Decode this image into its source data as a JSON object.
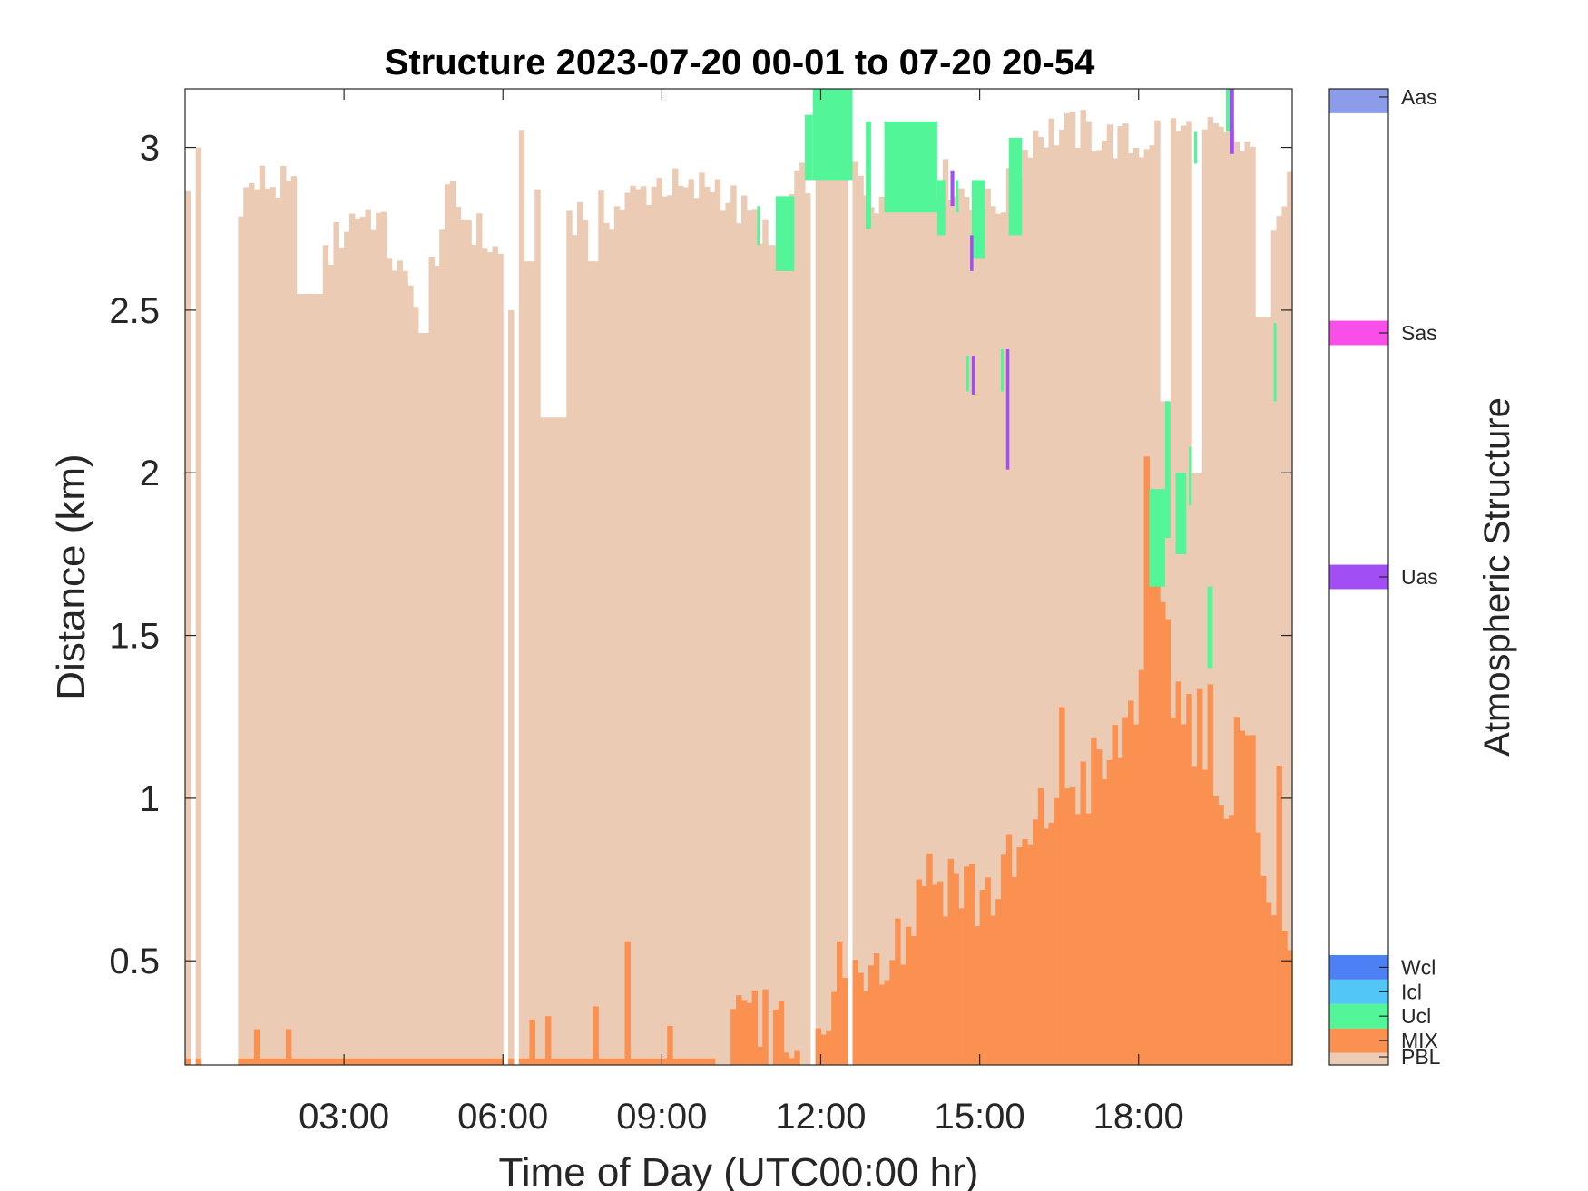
{
  "chart_data": {
    "type": "heatmap",
    "title": "Structure 2023-07-20 00-01 to 07-20 20-54",
    "xlabel": "Time of Day (UTC00:00 hr)",
    "ylabel": "Distance (km)",
    "colorbar_label": "Atmospheric Structure",
    "xlim": [
      0,
      20.9
    ],
    "ylim": [
      0.18,
      3.18
    ],
    "x_ticks": [
      {
        "value": 3,
        "label": "03:00"
      },
      {
        "value": 6,
        "label": "06:00"
      },
      {
        "value": 9,
        "label": "09:00"
      },
      {
        "value": 12,
        "label": "12:00"
      },
      {
        "value": 15,
        "label": "15:00"
      },
      {
        "value": 18,
        "label": "18:00"
      }
    ],
    "y_ticks": [
      {
        "value": 0.5,
        "label": "0.5"
      },
      {
        "value": 1,
        "label": "1"
      },
      {
        "value": 1.5,
        "label": "1.5"
      },
      {
        "value": 2,
        "label": "2"
      },
      {
        "value": 2.5,
        "label": "2.5"
      },
      {
        "value": 3,
        "label": "3"
      }
    ],
    "categories": [
      {
        "label": "PBL",
        "color": "#ECCBB5"
      },
      {
        "label": "MIX",
        "color": "#FA9150"
      },
      {
        "label": "Ucl",
        "color": "#52F597"
      },
      {
        "label": "Icl",
        "color": "#52C6F7"
      },
      {
        "label": "Wcl",
        "color": "#4D7FF5"
      },
      {
        "label": "Uas",
        "color": "#A14FF5"
      },
      {
        "label": "Sas",
        "color": "#F84FE9"
      },
      {
        "label": "Aas",
        "color": "#8C9CEA"
      }
    ],
    "pbl_top_knots": [
      [
        0.0,
        2.88
      ],
      [
        0.2,
        3.0
      ],
      [
        1.0,
        2.85
      ],
      [
        1.5,
        2.9
      ],
      [
        2.2,
        2.85
      ],
      [
        2.6,
        2.65
      ],
      [
        3.2,
        2.8
      ],
      [
        3.6,
        2.8
      ],
      [
        4.2,
        2.55
      ],
      [
        4.6,
        2.6
      ],
      [
        5.0,
        2.85
      ],
      [
        5.5,
        2.75
      ],
      [
        6.0,
        2.65
      ],
      [
        6.3,
        3.0
      ],
      [
        6.8,
        2.9
      ],
      [
        7.3,
        2.8
      ],
      [
        8.0,
        2.8
      ],
      [
        8.5,
        2.85
      ],
      [
        9.0,
        2.9
      ],
      [
        9.5,
        2.85
      ],
      [
        10.0,
        2.9
      ],
      [
        10.5,
        2.8
      ],
      [
        11.0,
        2.75
      ],
      [
        11.5,
        2.85
      ],
      [
        12.0,
        3.0
      ],
      [
        12.5,
        2.95
      ],
      [
        13.0,
        2.85
      ],
      [
        13.5,
        2.9
      ],
      [
        14.0,
        2.9
      ],
      [
        14.5,
        2.9
      ],
      [
        15.0,
        2.8
      ],
      [
        15.5,
        2.85
      ],
      [
        16.0,
        3.05
      ],
      [
        17.0,
        3.05
      ],
      [
        18.0,
        3.0
      ],
      [
        18.3,
        3.05
      ],
      [
        19.0,
        3.05
      ],
      [
        20.0,
        3.0
      ],
      [
        20.4,
        3.0
      ],
      [
        20.6,
        2.7
      ],
      [
        20.9,
        2.9
      ]
    ],
    "pbl_dips": [
      [
        2.1,
        2.6,
        2.55
      ],
      [
        4.4,
        4.6,
        2.43
      ],
      [
        6.05,
        6.2,
        2.5
      ],
      [
        6.45,
        6.6,
        2.65
      ],
      [
        6.75,
        7.2,
        2.17
      ],
      [
        7.6,
        7.8,
        2.65
      ],
      [
        11.0,
        11.3,
        2.7
      ],
      [
        18.4,
        18.6,
        2.22
      ],
      [
        19.0,
        19.2,
        2.0
      ],
      [
        20.25,
        20.5,
        2.48
      ]
    ],
    "data_gaps": [
      [
        0.15,
        0.2
      ],
      [
        0.3,
        1.0
      ],
      [
        6.05,
        6.15
      ],
      [
        6.25,
        6.33
      ],
      [
        11.82,
        11.88
      ],
      [
        12.52,
        12.58
      ],
      [
        19.58,
        19.65
      ]
    ],
    "mix_knots": [
      [
        0.0,
        0.42
      ],
      [
        0.05,
        0.2
      ],
      [
        10.0,
        0.2
      ],
      [
        11.0,
        0.3
      ],
      [
        12.0,
        0.2
      ],
      [
        12.5,
        0.45
      ],
      [
        13.0,
        0.55
      ],
      [
        13.5,
        0.58
      ],
      [
        14.0,
        0.65
      ],
      [
        14.3,
        0.78
      ],
      [
        15.0,
        0.7
      ],
      [
        15.5,
        0.75
      ],
      [
        16.0,
        0.85
      ],
      [
        16.5,
        1.05
      ],
      [
        17.0,
        1.05
      ],
      [
        17.5,
        1.1
      ],
      [
        18.0,
        1.35
      ],
      [
        18.2,
        1.7
      ],
      [
        18.4,
        1.6
      ],
      [
        18.6,
        1.35
      ],
      [
        19.0,
        1.25
      ],
      [
        19.4,
        1.2
      ],
      [
        19.7,
        0.9
      ],
      [
        20.0,
        1.15
      ],
      [
        20.3,
        0.95
      ],
      [
        20.6,
        0.6
      ],
      [
        20.9,
        0.5
      ]
    ],
    "mix_spikes": [
      [
        0.45,
        0.26
      ],
      [
        1.4,
        0.29
      ],
      [
        2.0,
        0.29
      ],
      [
        6.55,
        0.32
      ],
      [
        6.9,
        0.33
      ],
      [
        7.8,
        0.36
      ],
      [
        8.4,
        0.56
      ],
      [
        9.2,
        0.3
      ],
      [
        10.7,
        0.37
      ],
      [
        11.2,
        0.35
      ],
      [
        11.9,
        0.37
      ],
      [
        12.4,
        0.56
      ],
      [
        13.9,
        0.75
      ],
      [
        14.1,
        0.83
      ],
      [
        16.6,
        1.28
      ],
      [
        17.3,
        1.15
      ],
      [
        18.2,
        2.05
      ],
      [
        18.6,
        1.55
      ],
      [
        19.4,
        1.35
      ],
      [
        19.9,
        1.25
      ],
      [
        20.7,
        1.1
      ]
    ],
    "ucl_segments": [
      [
        10.8,
        10.85,
        2.7,
        2.82
      ],
      [
        11.15,
        11.5,
        2.62,
        2.85
      ],
      [
        11.7,
        11.85,
        2.9,
        3.1
      ],
      [
        11.85,
        12.6,
        2.9,
        3.18
      ],
      [
        12.85,
        12.95,
        2.75,
        3.08
      ],
      [
        13.2,
        14.2,
        2.8,
        3.08
      ],
      [
        14.2,
        14.35,
        2.73,
        2.9
      ],
      [
        14.55,
        14.6,
        2.8,
        2.9
      ],
      [
        14.85,
        15.1,
        2.66,
        2.9
      ],
      [
        15.55,
        15.8,
        2.73,
        3.03
      ],
      [
        19.05,
        19.1,
        2.95,
        3.05
      ],
      [
        19.65,
        19.72,
        3.05,
        3.18
      ],
      [
        18.2,
        18.5,
        1.65,
        1.95
      ],
      [
        18.5,
        18.6,
        1.8,
        2.22
      ],
      [
        18.7,
        18.9,
        1.75,
        2.0
      ],
      [
        18.95,
        19.0,
        1.9,
        2.08
      ],
      [
        19.3,
        19.4,
        1.4,
        1.65
      ],
      [
        14.75,
        14.8,
        2.25,
        2.36
      ],
      [
        15.4,
        15.45,
        2.25,
        2.38
      ],
      [
        20.55,
        20.6,
        2.22,
        2.46
      ]
    ],
    "uas_segments": [
      [
        14.45,
        14.52,
        2.82,
        2.93
      ],
      [
        14.82,
        14.88,
        2.62,
        2.73
      ],
      [
        14.85,
        14.91,
        2.24,
        2.36
      ],
      [
        15.5,
        15.56,
        2.01,
        2.38
      ],
      [
        19.73,
        19.8,
        2.98,
        3.18
      ]
    ]
  }
}
